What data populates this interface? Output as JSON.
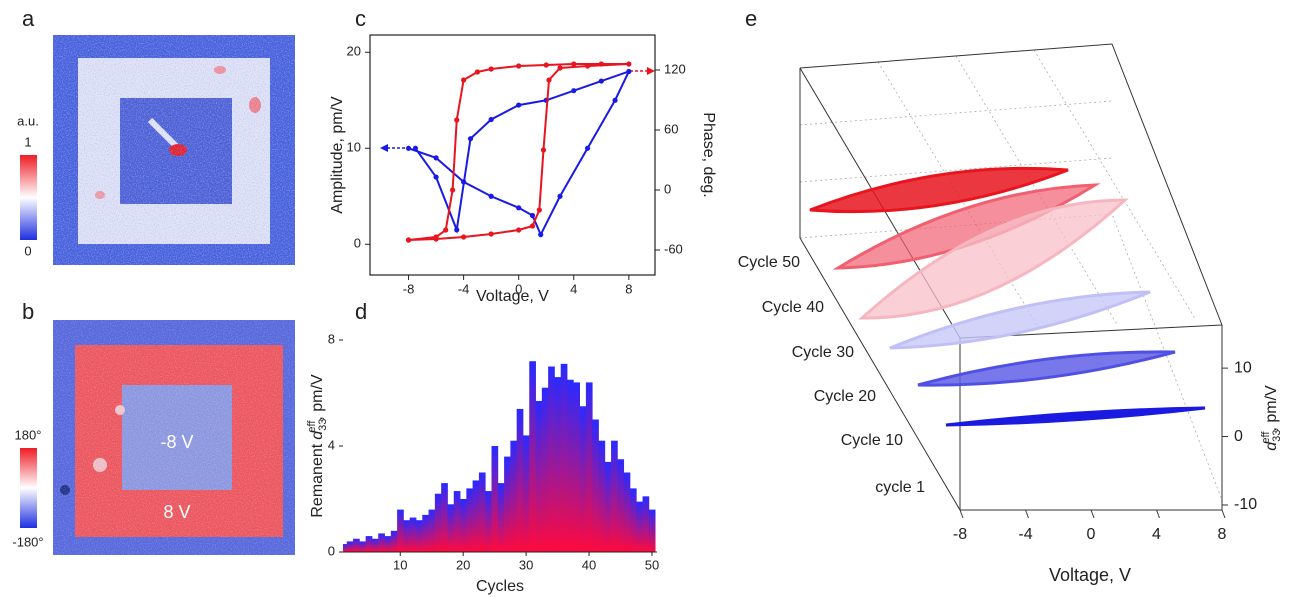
{
  "panel_labels": [
    "a",
    "b",
    "c",
    "d",
    "e"
  ],
  "images": [
    {
      "colorbar_title": "a.u.",
      "colorbar_ticks": [
        "1",
        "0"
      ]
    },
    {
      "colorbar_ticks": [
        "180°",
        "-180°"
      ],
      "annotations": [
        "-8 V",
        "8 V"
      ]
    }
  ],
  "chart_data": [
    {
      "type": "line",
      "x_label": "Voltage, V",
      "y_label": "Amplitude, pm/V",
      "y2_label": "Phase, deg.",
      "xlim": [
        -10.8,
        9.9
      ],
      "xticks": [
        -8,
        -4,
        0,
        4,
        8
      ],
      "ylim": [
        -3.2,
        21.8
      ],
      "yticks": [
        0,
        10,
        20
      ],
      "y2lim": [
        -85,
        155
      ],
      "y2ticks": [
        -60,
        0,
        60,
        120
      ],
      "series": [
        {
          "color": "#1a1ae6",
          "x": [
            -8,
            -6,
            -4,
            -2,
            0,
            1,
            1.6,
            3,
            5,
            7,
            8,
            6,
            4,
            2,
            0,
            -2,
            -3.5,
            -4.5,
            -6,
            -7.5
          ],
          "values": [
            10,
            9,
            6.5,
            5,
            3.8,
            3,
            1,
            5,
            10,
            15,
            18,
            17,
            16,
            15,
            14.5,
            13,
            11,
            1.5,
            7,
            10
          ]
        },
        {
          "color": "#e8141e",
          "axis": "y2",
          "x": [
            -8,
            -6,
            -4,
            -2,
            0,
            1,
            1.5,
            1.8,
            2.2,
            3,
            5,
            8,
            6,
            4,
            2,
            0,
            -2,
            -3,
            -4,
            -4.5,
            -4.8,
            -5.3,
            -6,
            -8
          ],
          "values": [
            -50,
            -49,
            -47,
            -44,
            -40,
            -36,
            -20,
            40,
            110,
            122,
            124,
            126,
            126,
            126,
            125,
            124,
            121,
            118,
            110,
            70,
            0,
            -40,
            -47,
            -50
          ]
        }
      ]
    },
    {
      "type": "bar",
      "x_label": "Cycles",
      "y_label": [
        "Remanent",
        "d",
        "33",
        "eff",
        ", pm/V"
      ],
      "gradient": [
        "#2a2aff",
        "#ff0a3c"
      ],
      "x": [
        1,
        2,
        3,
        4,
        5,
        6,
        7,
        8,
        9,
        10,
        11,
        12,
        13,
        14,
        15,
        16,
        17,
        18,
        19,
        20,
        21,
        22,
        23,
        24,
        25,
        26,
        27,
        28,
        29,
        30,
        31,
        32,
        33,
        34,
        35,
        36,
        37,
        38,
        39,
        40,
        41,
        42,
        43,
        44,
        45,
        46,
        47,
        48,
        49,
        50
      ],
      "values": [
        0.3,
        0.4,
        0.5,
        0.4,
        0.6,
        0.5,
        0.7,
        0.6,
        0.8,
        1.6,
        1.2,
        1.3,
        1.2,
        1.4,
        1.6,
        2.2,
        2.6,
        1.8,
        2.3,
        2.0,
        2.4,
        2.7,
        3.0,
        2.3,
        4.0,
        2.6,
        3.6,
        4.2,
        5.4,
        4.4,
        7.2,
        5.7,
        6.2,
        7.0,
        6.6,
        7.1,
        6.5,
        6.4,
        5.5,
        6.4,
        5.0,
        4.2,
        3.4,
        4.2,
        3.5,
        3.0,
        2.4,
        1.9,
        2.1,
        1.6
      ],
      "xlim": [
        0.9,
        50.8
      ],
      "xticks": [
        10,
        20,
        30,
        40,
        50
      ],
      "ylim": [
        0,
        8
      ],
      "yticks": [
        0,
        4,
        8
      ]
    },
    {
      "type": "waterfall3d",
      "categories": [
        "cycle 1",
        "Cycle 10",
        "Cycle 20",
        "Cycle 30",
        "Cycle 40",
        "Cycle 50"
      ],
      "x_label": "Voltage, V",
      "z_label": [
        "d",
        "33",
        "eff",
        ", pm/V"
      ],
      "xlim": [
        -8,
        8
      ],
      "xticks": [
        -8,
        -4,
        0,
        4,
        8
      ],
      "zlim": [
        -10,
        16.3
      ],
      "zticks": [
        -10,
        0,
        10
      ]
    }
  ]
}
